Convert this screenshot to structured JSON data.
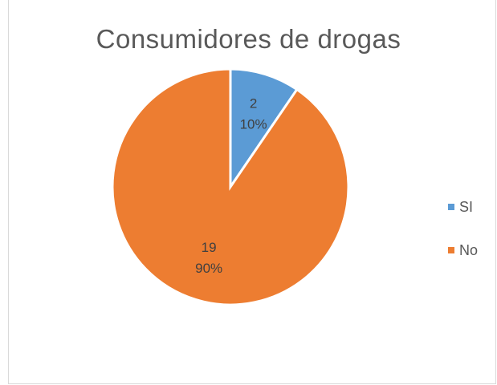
{
  "chart_data": {
    "type": "pie",
    "title": "Consumidores de drogas",
    "categories": [
      "SI",
      "No"
    ],
    "values": [
      2,
      19
    ],
    "percent_labels": [
      "10%",
      "90%"
    ],
    "colors": [
      "#5b9bd5",
      "#ed7d31"
    ],
    "legend_position": "right",
    "start_angle_deg": 0,
    "direction": "clockwise"
  }
}
